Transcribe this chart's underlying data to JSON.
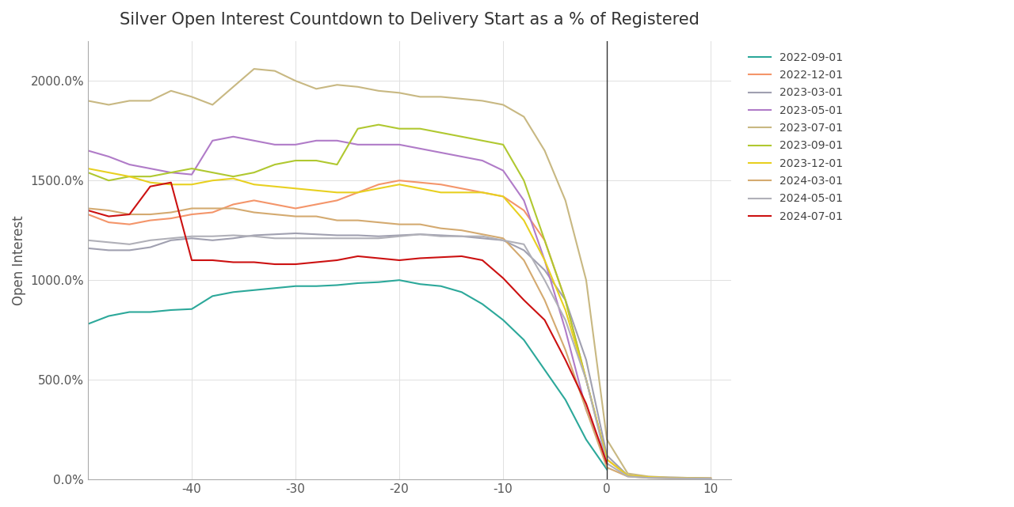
{
  "title": "Silver Open Interest Countdown to Delivery Start as a % of Registered",
  "ylabel": "Open Interest",
  "xlim": [
    -50,
    12
  ],
  "ylim": [
    0,
    2200
  ],
  "yticks": [
    0,
    500,
    1000,
    1500,
    2000
  ],
  "ytick_labels": [
    "0.0%",
    "500.0%",
    "1000.0%",
    "1500.0%",
    "2000.0%"
  ],
  "xticks": [
    -40,
    -30,
    -20,
    -10,
    0,
    10
  ],
  "background_color": "#ffffff",
  "grid_color": "#e0e0e0",
  "series": [
    {
      "label": "2022-09-01",
      "color": "#2ca89a",
      "x": [
        -50,
        -48,
        -46,
        -44,
        -42,
        -40,
        -38,
        -36,
        -34,
        -32,
        -30,
        -28,
        -26,
        -24,
        -22,
        -20,
        -18,
        -16,
        -14,
        -12,
        -10,
        -8,
        -6,
        -4,
        -2,
        0
      ],
      "y": [
        780,
        820,
        840,
        840,
        850,
        855,
        920,
        940,
        950,
        960,
        970,
        970,
        975,
        985,
        990,
        1000,
        980,
        970,
        940,
        880,
        800,
        700,
        550,
        400,
        200,
        50
      ]
    },
    {
      "label": "2022-12-01",
      "color": "#f4956a",
      "x": [
        -50,
        -48,
        -46,
        -44,
        -42,
        -40,
        -38,
        -36,
        -34,
        -32,
        -30,
        -28,
        -26,
        -24,
        -22,
        -20,
        -18,
        -16,
        -14,
        -12,
        -10,
        -8,
        -6,
        -4,
        -2,
        0,
        2,
        4,
        6,
        8,
        10
      ],
      "y": [
        1330,
        1290,
        1280,
        1300,
        1310,
        1330,
        1340,
        1380,
        1400,
        1380,
        1360,
        1380,
        1400,
        1440,
        1480,
        1500,
        1490,
        1480,
        1460,
        1440,
        1420,
        1350,
        1200,
        900,
        500,
        100,
        20,
        10,
        8,
        7,
        6
      ]
    },
    {
      "label": "2023-03-01",
      "color": "#a0a0b0",
      "x": [
        -50,
        -48,
        -46,
        -44,
        -42,
        -40,
        -38,
        -36,
        -34,
        -32,
        -30,
        -28,
        -26,
        -24,
        -22,
        -20,
        -18,
        -16,
        -14,
        -12,
        -10,
        -8,
        -6,
        -4,
        -2,
        0,
        2,
        4,
        6,
        8,
        10
      ],
      "y": [
        1160,
        1150,
        1150,
        1165,
        1200,
        1210,
        1200,
        1210,
        1225,
        1230,
        1235,
        1230,
        1225,
        1225,
        1220,
        1225,
        1230,
        1225,
        1220,
        1210,
        1200,
        1150,
        1050,
        900,
        600,
        120,
        20,
        12,
        10,
        8,
        6
      ]
    },
    {
      "label": "2023-05-01",
      "color": "#b07bc8",
      "x": [
        -50,
        -48,
        -46,
        -44,
        -42,
        -40,
        -38,
        -36,
        -34,
        -32,
        -30,
        -28,
        -26,
        -24,
        -22,
        -20,
        -18,
        -16,
        -14,
        -12,
        -10,
        -8,
        -6,
        -4,
        -2,
        0
      ],
      "y": [
        1650,
        1620,
        1580,
        1560,
        1540,
        1530,
        1700,
        1720,
        1700,
        1680,
        1680,
        1700,
        1700,
        1680,
        1680,
        1680,
        1660,
        1640,
        1620,
        1600,
        1550,
        1400,
        1100,
        750,
        350,
        100
      ]
    },
    {
      "label": "2023-07-01",
      "color": "#c8b882",
      "x": [
        -50,
        -48,
        -46,
        -44,
        -42,
        -40,
        -38,
        -36,
        -34,
        -32,
        -30,
        -28,
        -26,
        -24,
        -22,
        -20,
        -18,
        -16,
        -14,
        -12,
        -10,
        -8,
        -6,
        -4,
        -2,
        0,
        2,
        4,
        6,
        8,
        10
      ],
      "y": [
        1900,
        1880,
        1900,
        1900,
        1950,
        1920,
        1880,
        1970,
        2060,
        2050,
        2000,
        1960,
        1980,
        1970,
        1950,
        1940,
        1920,
        1920,
        1910,
        1900,
        1880,
        1820,
        1650,
        1400,
        1000,
        200,
        30,
        15,
        10,
        8,
        6
      ]
    },
    {
      "label": "2023-09-01",
      "color": "#b0c830",
      "x": [
        -50,
        -48,
        -46,
        -44,
        -42,
        -40,
        -38,
        -36,
        -34,
        -32,
        -30,
        -28,
        -26,
        -24,
        -22,
        -20,
        -18,
        -16,
        -14,
        -12,
        -10,
        -8,
        -6,
        -4,
        -2,
        0
      ],
      "y": [
        1540,
        1500,
        1520,
        1520,
        1540,
        1560,
        1540,
        1520,
        1540,
        1580,
        1600,
        1600,
        1580,
        1760,
        1780,
        1760,
        1760,
        1740,
        1720,
        1700,
        1680,
        1500,
        1200,
        900,
        500,
        100
      ]
    },
    {
      "label": "2023-12-01",
      "color": "#e8d020",
      "x": [
        -50,
        -48,
        -46,
        -44,
        -42,
        -40,
        -38,
        -36,
        -34,
        -32,
        -30,
        -28,
        -26,
        -24,
        -22,
        -20,
        -18,
        -16,
        -14,
        -12,
        -10,
        -8,
        -6,
        -4,
        -2,
        0,
        2,
        4,
        6,
        8,
        10
      ],
      "y": [
        1560,
        1540,
        1520,
        1490,
        1480,
        1480,
        1500,
        1510,
        1480,
        1470,
        1460,
        1450,
        1440,
        1440,
        1460,
        1480,
        1460,
        1440,
        1440,
        1440,
        1420,
        1300,
        1100,
        850,
        500,
        100,
        20,
        12,
        8,
        6,
        5
      ]
    },
    {
      "label": "2024-03-01",
      "color": "#d4aa70",
      "x": [
        -50,
        -48,
        -46,
        -44,
        -42,
        -40,
        -38,
        -36,
        -34,
        -32,
        -30,
        -28,
        -26,
        -24,
        -22,
        -20,
        -18,
        -16,
        -14,
        -12,
        -10,
        -8,
        -6,
        -4,
        -2,
        0,
        2,
        4,
        6,
        8,
        10
      ],
      "y": [
        1360,
        1350,
        1330,
        1330,
        1340,
        1360,
        1360,
        1360,
        1340,
        1330,
        1320,
        1320,
        1300,
        1300,
        1290,
        1280,
        1280,
        1260,
        1250,
        1230,
        1210,
        1100,
        900,
        650,
        350,
        60,
        15,
        8,
        6,
        5,
        4
      ]
    },
    {
      "label": "2024-05-01",
      "color": "#b0b0b8",
      "x": [
        -50,
        -48,
        -46,
        -44,
        -42,
        -40,
        -38,
        -36,
        -34,
        -32,
        -30,
        -28,
        -26,
        -24,
        -22,
        -20,
        -18,
        -16,
        -14,
        -12,
        -10,
        -8,
        -6,
        -4,
        -2,
        0,
        2,
        4,
        6,
        8,
        10
      ],
      "y": [
        1200,
        1190,
        1180,
        1200,
        1210,
        1220,
        1220,
        1225,
        1220,
        1210,
        1210,
        1210,
        1210,
        1210,
        1210,
        1220,
        1230,
        1220,
        1220,
        1220,
        1200,
        1180,
        1000,
        800,
        500,
        80,
        15,
        8,
        6,
        5,
        4
      ]
    },
    {
      "label": "2024-07-01",
      "color": "#cc1111",
      "x": [
        -50,
        -48,
        -46,
        -44,
        -42,
        -40,
        -38,
        -36,
        -34,
        -32,
        -30,
        -28,
        -26,
        -24,
        -22,
        -20,
        -18,
        -16,
        -14,
        -12,
        -10,
        -8,
        -6,
        -4,
        -2,
        0
      ],
      "y": [
        1350,
        1320,
        1330,
        1470,
        1490,
        1100,
        1100,
        1090,
        1090,
        1080,
        1080,
        1090,
        1100,
        1120,
        1110,
        1100,
        1110,
        1115,
        1120,
        1100,
        1010,
        900,
        800,
        600,
        380,
        80
      ]
    }
  ]
}
